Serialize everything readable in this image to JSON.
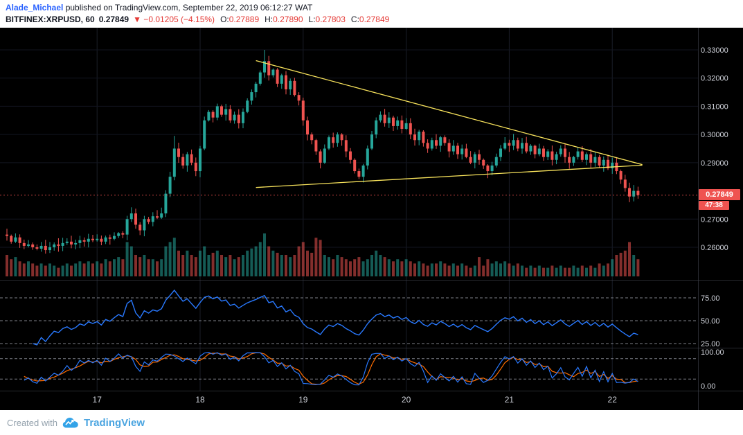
{
  "header": {
    "author": "Alade_Michael",
    "published_text": " published on TradingView.com, September 22, 2019 06:12:27 WAT",
    "symbol": "BITFINEX:XRPUSD, 60",
    "last_price": "0.27849",
    "change": "▼ −0.01205 (−4.15%)",
    "ohlc": [
      {
        "label": "O:",
        "value": "0.27889"
      },
      {
        "label": "H:",
        "value": "0.27890"
      },
      {
        "label": "L:",
        "value": "0.27803"
      },
      {
        "label": "C:",
        "value": "0.27849"
      }
    ]
  },
  "footer": {
    "created_with": "Created with",
    "brand": "TradingView"
  },
  "chart_data": {
    "type": "candlestick",
    "symbol": "BITFINEX:XRPUSD",
    "interval_minutes": 60,
    "title": "",
    "price_range": [
      0.255,
      0.335
    ],
    "current_price": 0.27849,
    "candles": {
      "first_open": 0.2645,
      "closes": [
        0.264,
        0.262,
        0.2635,
        0.2615,
        0.2605,
        0.261,
        0.26,
        0.2595,
        0.2605,
        0.259,
        0.26,
        0.261,
        0.2605,
        0.2615,
        0.262,
        0.261,
        0.2615,
        0.2625,
        0.262,
        0.263,
        0.2625,
        0.263,
        0.262,
        0.2635,
        0.263,
        0.264,
        0.265,
        0.2645,
        0.27,
        0.272,
        0.268,
        0.266,
        0.27,
        0.269,
        0.271,
        0.2705,
        0.272,
        0.279,
        0.285,
        0.295,
        0.292,
        0.289,
        0.293,
        0.29,
        0.287,
        0.295,
        0.305,
        0.308,
        0.306,
        0.31,
        0.307,
        0.309,
        0.305,
        0.307,
        0.304,
        0.308,
        0.312,
        0.315,
        0.318,
        0.322,
        0.326,
        0.321,
        0.323,
        0.318,
        0.321,
        0.316,
        0.319,
        0.314,
        0.312,
        0.305,
        0.3,
        0.298,
        0.294,
        0.29,
        0.295,
        0.299,
        0.297,
        0.3,
        0.298,
        0.294,
        0.291,
        0.287,
        0.285,
        0.289,
        0.295,
        0.3,
        0.305,
        0.307,
        0.304,
        0.306,
        0.303,
        0.305,
        0.302,
        0.304,
        0.3,
        0.298,
        0.301,
        0.297,
        0.295,
        0.298,
        0.296,
        0.299,
        0.297,
        0.294,
        0.296,
        0.293,
        0.295,
        0.292,
        0.29,
        0.293,
        0.291,
        0.289,
        0.287,
        0.289,
        0.292,
        0.295,
        0.297,
        0.296,
        0.298,
        0.295,
        0.297,
        0.294,
        0.296,
        0.293,
        0.295,
        0.292,
        0.294,
        0.291,
        0.293,
        0.295,
        0.292,
        0.29,
        0.292,
        0.294,
        0.291,
        0.293,
        0.29,
        0.292,
        0.289,
        0.291,
        0.288,
        0.29,
        0.287,
        0.284,
        0.281,
        0.278,
        0.28,
        0.27849
      ],
      "volume": [
        5,
        4,
        4.5,
        3.5,
        3,
        3.5,
        3,
        2.5,
        3,
        2.5,
        3,
        2.5,
        2,
        2.5,
        3,
        2.5,
        3,
        3.5,
        3,
        3.5,
        3,
        3.5,
        3,
        4,
        3.5,
        4,
        4.5,
        4,
        8,
        7,
        5,
        4.5,
        5,
        4,
        4,
        3.5,
        4,
        7,
        8,
        9,
        6,
        5,
        6,
        5,
        4.5,
        6,
        7,
        5,
        5.5,
        6,
        5,
        4.5,
        5,
        4,
        4.5,
        5,
        6,
        6.5,
        7,
        8,
        10,
        7,
        6,
        5.5,
        5,
        5,
        4.5,
        5,
        7,
        8,
        6,
        5.5,
        9,
        8.5,
        5,
        4.5,
        4,
        5,
        4.5,
        4,
        3.5,
        4,
        4.5,
        3.5,
        4,
        5,
        6,
        5,
        4.5,
        4,
        3.5,
        4,
        3.5,
        4,
        3.5,
        3,
        3.5,
        3,
        2.5,
        3,
        3,
        3.5,
        3,
        2.5,
        3,
        2.5,
        3,
        2.5,
        2,
        2.5,
        4.5,
        2.5,
        4,
        3,
        3.5,
        3,
        3.5,
        3,
        2.5,
        3,
        2.5,
        2,
        2.5,
        2,
        2.5,
        2,
        2,
        2.5,
        2,
        2.5,
        2,
        2,
        2.5,
        2,
        2.5,
        2,
        2.5,
        2,
        3,
        2.5,
        3,
        4,
        5,
        5.5,
        6,
        8,
        5,
        4
      ],
      "volume_max": 10,
      "wick_overrides": {
        "39": {
          "h": 0.2995
        },
        "60": {
          "h": 0.33
        },
        "82": {
          "l": 0.2842
        },
        "112": {
          "l": 0.2845
        },
        "145": {
          "l": 0.276
        }
      }
    },
    "trendlines": [
      {
        "name": "upper-descending-trendline",
        "from": {
          "i": 58,
          "p": 0.3262
        },
        "to": {
          "i": 148,
          "p": 0.2893
        }
      },
      {
        "name": "lower-ascending-trendline",
        "from": {
          "i": 58,
          "p": 0.2812
        },
        "to": {
          "i": 148,
          "p": 0.2891
        }
      }
    ],
    "price_axis": {
      "labels": [
        {
          "text": "0.33000",
          "value": 0.33
        },
        {
          "text": "0.32000",
          "value": 0.32
        },
        {
          "text": "0.31000",
          "value": 0.31
        },
        {
          "text": "0.30000",
          "value": 0.3
        },
        {
          "text": "0.29000",
          "value": 0.29
        },
        {
          "text": "0.27000",
          "value": 0.27
        },
        {
          "text": "0.26000",
          "value": 0.26
        }
      ],
      "last_price_tag": {
        "text": "0.27849",
        "value": 0.27849,
        "countdown": "47:38"
      }
    },
    "time_axis": {
      "labels": [
        {
          "text": "17",
          "index": 21
        },
        {
          "text": "18",
          "index": 45
        },
        {
          "text": "19",
          "index": 69
        },
        {
          "text": "20",
          "index": 93
        },
        {
          "text": "21",
          "index": 117
        },
        {
          "text": "22",
          "index": 141
        }
      ]
    },
    "indicators": {
      "rsi": {
        "name": "RSI",
        "period": 14,
        "level_lines": [
          75,
          50,
          25
        ],
        "axis_labels": [
          {
            "text": "75.00",
            "value": 75
          },
          {
            "text": "50.00",
            "value": 50
          },
          {
            "text": "25.00",
            "value": 25
          }
        ]
      },
      "stoch": {
        "name": "Stochastic",
        "k_period": 14,
        "d_period": 3,
        "level_lines": [
          80,
          20
        ],
        "axis_labels": [
          {
            "text": "100.00",
            "value": 100
          },
          {
            "text": "0.00",
            "value": 0
          }
        ]
      }
    },
    "colors": {
      "up": "#26a69a",
      "down": "#ef5350",
      "trendline": "#f8e35c",
      "rsi_line": "#2979ff",
      "stoch_k": "#2979ff",
      "stoch_d": "#ff6d00",
      "axis_text": "#d1d4dc",
      "grid": "#1b1e29",
      "main_hgrid": "#121520",
      "level_dash": "#9598a1",
      "separator": "#434651",
      "tag_bg": "#ef5350"
    }
  }
}
